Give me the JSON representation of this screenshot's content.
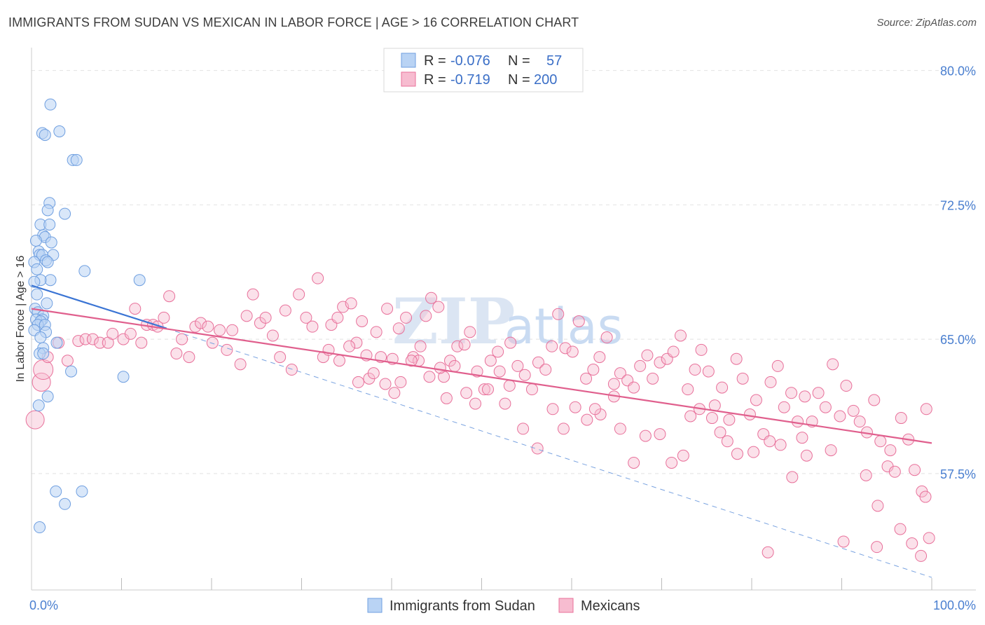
{
  "title": "IMMIGRANTS FROM SUDAN VS MEXICAN IN LABOR FORCE | AGE > 16 CORRELATION CHART",
  "source": "Source: ZipAtlas.com",
  "watermark": {
    "part1": "ZIP",
    "part2": "atlas"
  },
  "colors": {
    "blue": "#6f9fe0",
    "blue_fill": "#b9d3f4",
    "pink": "#e8709a",
    "pink_fill": "#f7bcd0",
    "tick": "#4a7fd0"
  },
  "legend": {
    "rows": [
      {
        "r_label": "R =",
        "r_value": "-0.076",
        "n_label": "N =",
        "n_value": "57"
      },
      {
        "r_label": "R =",
        "r_value": "-0.719",
        "n_label": "N =",
        "n_value": "200"
      }
    ]
  },
  "bottom_legend": {
    "series1": "Immigrants from Sudan",
    "series2": "Mexicans"
  },
  "chart_data": {
    "type": "scatter",
    "ylabel": "In Labor Force | Age > 16",
    "xlim": [
      0,
      100
    ],
    "ylim": [
      51,
      81
    ],
    "x_tick_labels": [
      "0.0%",
      "100.0%"
    ],
    "y_ticks": [
      57.5,
      65.0,
      72.5,
      80.0
    ],
    "y_tick_labels": [
      "57.5%",
      "65.0%",
      "72.5%",
      "80.0%"
    ],
    "grid": true,
    "series": [
      {
        "name": "Immigrants from Sudan",
        "color": "#6f9fe0",
        "points": [
          [
            2.1,
            78.1
          ],
          [
            1.2,
            76.5
          ],
          [
            1.5,
            76.4
          ],
          [
            3.1,
            76.6
          ],
          [
            4.6,
            75.0
          ],
          [
            5.0,
            75.0
          ],
          [
            2.0,
            72.6
          ],
          [
            1.8,
            72.2
          ],
          [
            3.7,
            72.0
          ],
          [
            1.0,
            71.4
          ],
          [
            2.0,
            71.4
          ],
          [
            1.3,
            70.8
          ],
          [
            1.5,
            70.7
          ],
          [
            0.5,
            70.5
          ],
          [
            2.2,
            70.4
          ],
          [
            0.8,
            69.9
          ],
          [
            0.9,
            69.7
          ],
          [
            1.2,
            69.7
          ],
          [
            2.4,
            69.7
          ],
          [
            1.6,
            69.4
          ],
          [
            1.8,
            69.3
          ],
          [
            0.3,
            69.3
          ],
          [
            0.6,
            68.9
          ],
          [
            5.9,
            68.8
          ],
          [
            2.1,
            68.3
          ],
          [
            1.0,
            68.3
          ],
          [
            0.3,
            68.2
          ],
          [
            12.0,
            68.3
          ],
          [
            0.6,
            67.5
          ],
          [
            1.7,
            67.0
          ],
          [
            0.4,
            66.7
          ],
          [
            0.7,
            66.5
          ],
          [
            1.3,
            66.3
          ],
          [
            1.2,
            66.1
          ],
          [
            0.5,
            66.1
          ],
          [
            1.0,
            66.0
          ],
          [
            0.7,
            65.8
          ],
          [
            1.5,
            65.8
          ],
          [
            0.3,
            65.5
          ],
          [
            1.6,
            65.4
          ],
          [
            1.0,
            65.1
          ],
          [
            2.8,
            64.8
          ],
          [
            1.3,
            64.5
          ],
          [
            0.9,
            64.2
          ],
          [
            1.3,
            64.2
          ],
          [
            4.4,
            63.2
          ],
          [
            0.8,
            61.3
          ],
          [
            1.8,
            61.8
          ],
          [
            10.2,
            62.9
          ],
          [
            2.7,
            56.5
          ],
          [
            5.6,
            56.5
          ],
          [
            3.7,
            55.8
          ],
          [
            0.9,
            54.5
          ]
        ]
      },
      {
        "name": "Mexicans",
        "color": "#e8709a",
        "points": [
          [
            0.4,
            60.5
          ],
          [
            1.1,
            62.6
          ],
          [
            1.3,
            63.3
          ],
          [
            1.8,
            64.0
          ],
          [
            3.0,
            64.8
          ],
          [
            4.0,
            63.8
          ],
          [
            5.2,
            64.9
          ],
          [
            6.0,
            65.0
          ],
          [
            6.8,
            65.0
          ],
          [
            7.6,
            64.8
          ],
          [
            8.5,
            64.8
          ],
          [
            9.0,
            65.3
          ],
          [
            10.2,
            65.0
          ],
          [
            11.0,
            65.3
          ],
          [
            11.5,
            66.7
          ],
          [
            12.2,
            64.8
          ],
          [
            12.8,
            65.8
          ],
          [
            13.5,
            65.8
          ],
          [
            14.0,
            65.7
          ],
          [
            14.7,
            66.2
          ],
          [
            15.3,
            67.4
          ],
          [
            16.1,
            64.2
          ],
          [
            16.7,
            65.0
          ],
          [
            17.5,
            64.0
          ],
          [
            18.2,
            65.7
          ],
          [
            18.8,
            65.9
          ],
          [
            19.6,
            65.7
          ],
          [
            20.1,
            64.8
          ],
          [
            20.9,
            65.5
          ],
          [
            21.7,
            64.4
          ],
          [
            22.3,
            65.5
          ],
          [
            23.2,
            63.6
          ],
          [
            23.9,
            66.3
          ],
          [
            24.6,
            67.5
          ],
          [
            25.4,
            65.9
          ],
          [
            26.0,
            66.2
          ],
          [
            26.8,
            65.2
          ],
          [
            27.6,
            64.0
          ],
          [
            28.2,
            66.6
          ],
          [
            28.9,
            63.3
          ],
          [
            29.7,
            67.5
          ],
          [
            30.5,
            66.2
          ],
          [
            31.2,
            65.7
          ],
          [
            31.8,
            68.4
          ],
          [
            32.4,
            64.0
          ],
          [
            33.3,
            65.8
          ],
          [
            34.0,
            66.2
          ],
          [
            34.6,
            66.8
          ],
          [
            35.5,
            67.0
          ],
          [
            36.1,
            64.8
          ],
          [
            36.7,
            66.0
          ],
          [
            37.5,
            62.8
          ],
          [
            38.3,
            65.4
          ],
          [
            38.8,
            64.0
          ],
          [
            39.5,
            66.7
          ],
          [
            40.1,
            63.9
          ],
          [
            40.8,
            65.6
          ],
          [
            41.6,
            66.2
          ],
          [
            42.4,
            64.0
          ],
          [
            43.0,
            63.8
          ],
          [
            43.8,
            66.3
          ],
          [
            44.4,
            67.3
          ],
          [
            45.2,
            66.8
          ],
          [
            45.8,
            62.9
          ],
          [
            46.5,
            63.8
          ],
          [
            47.3,
            64.6
          ],
          [
            48.1,
            64.7
          ],
          [
            48.7,
            65.4
          ],
          [
            49.5,
            63.2
          ],
          [
            50.3,
            62.2
          ],
          [
            51.0,
            63.8
          ],
          [
            51.8,
            64.3
          ],
          [
            52.6,
            61.4
          ],
          [
            53.2,
            64.8
          ],
          [
            54.0,
            63.5
          ],
          [
            54.8,
            63.0
          ],
          [
            55.6,
            62.2
          ],
          [
            56.3,
            63.7
          ],
          [
            57.1,
            63.3
          ],
          [
            57.8,
            64.6
          ],
          [
            58.5,
            66.4
          ],
          [
            59.3,
            64.5
          ],
          [
            60.1,
            64.3
          ],
          [
            60.8,
            66.0
          ],
          [
            61.6,
            62.8
          ],
          [
            62.4,
            63.3
          ],
          [
            63.1,
            64.0
          ],
          [
            63.9,
            65.1
          ],
          [
            64.7,
            62.5
          ],
          [
            65.4,
            63.1
          ],
          [
            66.2,
            62.7
          ],
          [
            66.9,
            62.3
          ],
          [
            67.6,
            63.5
          ],
          [
            68.4,
            64.1
          ],
          [
            69.0,
            62.8
          ],
          [
            69.8,
            63.7
          ],
          [
            70.6,
            63.9
          ],
          [
            71.3,
            64.3
          ],
          [
            72.1,
            65.2
          ],
          [
            72.9,
            62.2
          ],
          [
            73.7,
            63.3
          ],
          [
            74.4,
            64.4
          ],
          [
            75.2,
            63.2
          ],
          [
            75.9,
            61.3
          ],
          [
            76.7,
            62.3
          ],
          [
            77.5,
            60.5
          ],
          [
            78.3,
            63.9
          ],
          [
            79.0,
            62.8
          ],
          [
            79.8,
            60.8
          ],
          [
            80.5,
            61.6
          ],
          [
            81.3,
            59.7
          ],
          [
            82.1,
            62.6
          ],
          [
            82.9,
            63.5
          ],
          [
            83.6,
            61.2
          ],
          [
            84.4,
            62.0
          ],
          [
            85.1,
            60.4
          ],
          [
            85.9,
            61.8
          ],
          [
            86.7,
            60.4
          ],
          [
            87.4,
            62.0
          ],
          [
            88.2,
            61.2
          ],
          [
            89.0,
            63.6
          ],
          [
            89.8,
            60.7
          ],
          [
            90.5,
            62.4
          ],
          [
            91.3,
            61.0
          ],
          [
            92.0,
            60.4
          ],
          [
            92.8,
            59.8
          ],
          [
            93.6,
            61.6
          ],
          [
            94.3,
            59.3
          ],
          [
            95.1,
            57.9
          ],
          [
            95.9,
            57.6
          ],
          [
            96.6,
            60.6
          ],
          [
            97.4,
            59.4
          ],
          [
            98.1,
            57.7
          ],
          [
            98.9,
            56.5
          ],
          [
            99.4,
            61.1
          ],
          [
            99.7,
            53.9
          ],
          [
            98.8,
            52.9
          ],
          [
            97.8,
            53.6
          ],
          [
            96.5,
            54.4
          ],
          [
            93.9,
            53.4
          ],
          [
            90.2,
            53.7
          ],
          [
            81.8,
            53.1
          ],
          [
            95.4,
            58.8
          ],
          [
            94.0,
            55.7
          ],
          [
            99.3,
            56.2
          ],
          [
            88.8,
            58.8
          ],
          [
            92.7,
            57.4
          ],
          [
            85.6,
            59.5
          ],
          [
            84.5,
            57.3
          ],
          [
            86.1,
            58.5
          ],
          [
            83.2,
            59.1
          ],
          [
            82.0,
            59.3
          ],
          [
            80.2,
            58.7
          ],
          [
            78.4,
            58.6
          ],
          [
            77.3,
            59.3
          ],
          [
            76.5,
            59.8
          ],
          [
            75.6,
            60.6
          ],
          [
            74.2,
            61.1
          ],
          [
            73.2,
            60.7
          ],
          [
            72.4,
            58.5
          ],
          [
            71.1,
            58.1
          ],
          [
            69.8,
            59.7
          ],
          [
            68.2,
            59.6
          ],
          [
            66.9,
            58.1
          ],
          [
            65.4,
            60.0
          ],
          [
            64.7,
            61.8
          ],
          [
            63.2,
            60.8
          ],
          [
            62.6,
            61.1
          ],
          [
            61.7,
            60.5
          ],
          [
            60.4,
            61.2
          ],
          [
            59.1,
            60.0
          ],
          [
            57.9,
            61.1
          ],
          [
            56.2,
            58.9
          ],
          [
            54.6,
            60.0
          ],
          [
            53.1,
            62.4
          ],
          [
            52.0,
            63.2
          ],
          [
            50.7,
            62.2
          ],
          [
            49.3,
            61.4
          ],
          [
            48.3,
            62.0
          ],
          [
            47.0,
            63.5
          ],
          [
            46.1,
            61.7
          ],
          [
            45.4,
            63.4
          ],
          [
            44.2,
            62.9
          ],
          [
            43.2,
            64.6
          ],
          [
            42.2,
            63.8
          ],
          [
            41.0,
            62.6
          ],
          [
            40.3,
            62.0
          ],
          [
            39.3,
            62.5
          ],
          [
            38.0,
            63.1
          ],
          [
            37.2,
            64.1
          ],
          [
            36.3,
            62.6
          ],
          [
            35.3,
            64.6
          ],
          [
            34.2,
            63.8
          ],
          [
            33.0,
            64.4
          ]
        ]
      }
    ],
    "trend_lines": [
      {
        "series": "Immigrants from Sudan",
        "solid": [
          [
            0,
            68.0
          ],
          [
            15,
            65.6
          ]
        ],
        "dashed": [
          [
            15,
            65.6
          ],
          [
            100,
            51.7
          ]
        ]
      },
      {
        "series": "Mexicans",
        "solid": [
          [
            0,
            66.7
          ],
          [
            100,
            59.2
          ]
        ]
      }
    ]
  }
}
